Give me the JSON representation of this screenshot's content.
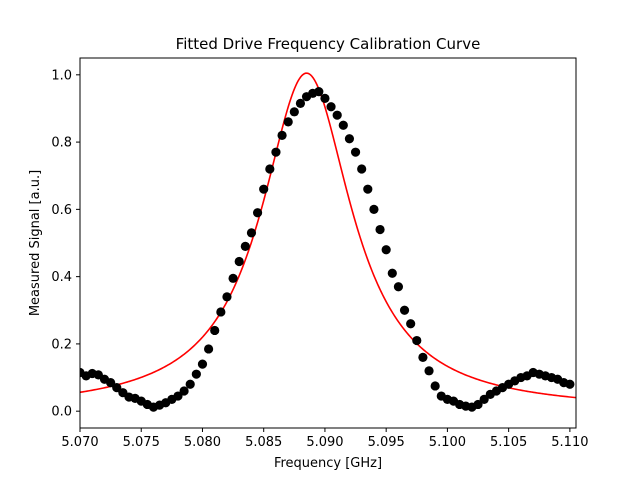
{
  "chart_data": {
    "type": "scatter",
    "title": "Fitted Drive Frequency Calibration Curve",
    "xlabel": "Frequency [GHz]",
    "ylabel": "Measured Signal [a.u.]",
    "xlim": [
      5.07,
      5.1105
    ],
    "ylim": [
      -0.05,
      1.05
    ],
    "grid": false,
    "x_ticks": [
      "5.070",
      "5.075",
      "5.080",
      "5.085",
      "5.090",
      "5.095",
      "5.100",
      "5.105",
      "5.110"
    ],
    "y_ticks": [
      "0.0",
      "0.2",
      "0.4",
      "0.6",
      "0.8",
      "1.0"
    ],
    "series": [
      {
        "kind": "points",
        "color": "#000000",
        "x": [
          5.07,
          5.0705,
          5.071,
          5.0715,
          5.072,
          5.0725,
          5.073,
          5.0735,
          5.074,
          5.0745,
          5.075,
          5.0755,
          5.076,
          5.0765,
          5.077,
          5.0775,
          5.078,
          5.0785,
          5.079,
          5.0795,
          5.08,
          5.0805,
          5.081,
          5.0815,
          5.082,
          5.0825,
          5.083,
          5.0835,
          5.084,
          5.0845,
          5.085,
          5.0855,
          5.086,
          5.0865,
          5.087,
          5.0875,
          5.088,
          5.0885,
          5.089,
          5.0895,
          5.09,
          5.0905,
          5.091,
          5.0915,
          5.092,
          5.0925,
          5.093,
          5.0935,
          5.094,
          5.0945,
          5.095,
          5.0955,
          5.096,
          5.0965,
          5.097,
          5.0975,
          5.098,
          5.0985,
          5.099,
          5.0995,
          5.1,
          5.1005,
          5.101,
          5.1015,
          5.102,
          5.1025,
          5.103,
          5.1035,
          5.104,
          5.1045,
          5.105,
          5.1055,
          5.106,
          5.1065,
          5.107,
          5.1075,
          5.108,
          5.1085,
          5.109,
          5.1095,
          5.11
        ],
        "y": [
          0.115,
          0.105,
          0.112,
          0.108,
          0.095,
          0.085,
          0.07,
          0.055,
          0.042,
          0.038,
          0.03,
          0.02,
          0.012,
          0.018,
          0.025,
          0.035,
          0.045,
          0.06,
          0.08,
          0.11,
          0.14,
          0.185,
          0.24,
          0.295,
          0.34,
          0.395,
          0.445,
          0.49,
          0.53,
          0.59,
          0.66,
          0.72,
          0.77,
          0.82,
          0.86,
          0.89,
          0.915,
          0.935,
          0.945,
          0.95,
          0.93,
          0.905,
          0.88,
          0.85,
          0.81,
          0.77,
          0.72,
          0.66,
          0.6,
          0.54,
          0.48,
          0.41,
          0.37,
          0.3,
          0.26,
          0.21,
          0.16,
          0.12,
          0.075,
          0.045,
          0.035,
          0.03,
          0.02,
          0.015,
          0.012,
          0.02,
          0.035,
          0.05,
          0.06,
          0.07,
          0.08,
          0.09,
          0.1,
          0.105,
          0.115,
          0.11,
          0.105,
          0.1,
          0.095,
          0.085,
          0.08
        ]
      },
      {
        "kind": "line",
        "color": "#ff0000",
        "model": "lorentzian",
        "amplitude": 1.005,
        "center": 5.0885,
        "hwhm": 0.0045
      }
    ]
  }
}
